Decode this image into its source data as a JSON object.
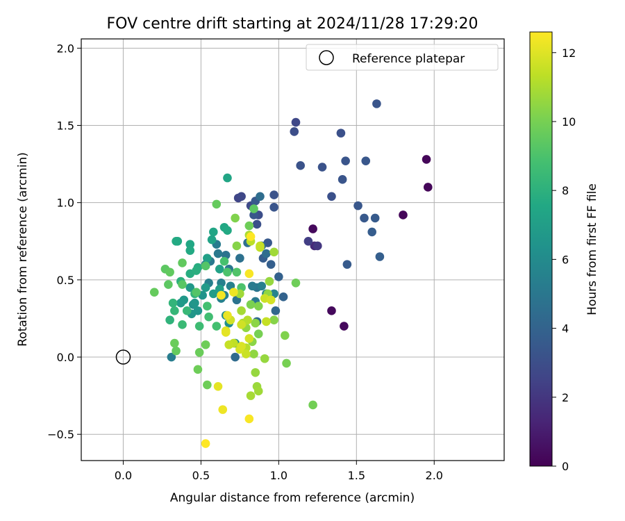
{
  "chart_data": {
    "type": "scatter",
    "title": "FOV centre drift starting at 2024/11/28 17:29:20",
    "xlabel": "Angular distance from reference (arcmin)",
    "ylabel": "Rotation from reference (arcmin)",
    "xlim": [
      -0.27,
      2.45
    ],
    "ylim": [
      -0.67,
      2.06
    ],
    "xticks": [
      0.0,
      0.5,
      1.0,
      1.5,
      2.0
    ],
    "xtick_labels": [
      "0.0",
      "0.5",
      "1.0",
      "1.5",
      "2.0"
    ],
    "yticks": [
      -0.5,
      0.0,
      0.5,
      1.0,
      1.5,
      2.0
    ],
    "ytick_labels": [
      "−0.5",
      "0.0",
      "0.5",
      "1.0",
      "1.5",
      "2.0"
    ],
    "grid": true,
    "legend": {
      "position": "top-right",
      "entries": [
        "Reference platepar"
      ]
    },
    "reference_point": {
      "x": 0.0,
      "y": 0.0,
      "label": "Reference platepar"
    },
    "colorbar": {
      "label": "Hours from first FF file",
      "colormap": "viridis",
      "range": [
        0,
        12.6
      ],
      "ticks": [
        0,
        2,
        4,
        6,
        8,
        10,
        12
      ],
      "tick_labels": [
        "0",
        "2",
        "4",
        "6",
        "8",
        "10",
        "12"
      ]
    },
    "points_note": "each point is [x_arcmin, y_arcmin, hours]",
    "points": [
      [
        1.95,
        1.28,
        0.2
      ],
      [
        1.96,
        1.1,
        0.2
      ],
      [
        1.8,
        0.92,
        0.2
      ],
      [
        1.22,
        0.83,
        0.3
      ],
      [
        1.34,
        0.3,
        0.3
      ],
      [
        1.42,
        0.2,
        0.3
      ],
      [
        1.23,
        0.72,
        1.5
      ],
      [
        1.25,
        0.72,
        2.0
      ],
      [
        1.19,
        0.75,
        2.3
      ],
      [
        1.11,
        1.52,
        2.7
      ],
      [
        1.63,
        1.64,
        3.3
      ],
      [
        1.1,
        1.46,
        3.0
      ],
      [
        1.14,
        1.24,
        3.2
      ],
      [
        1.4,
        1.45,
        3.1
      ],
      [
        1.28,
        1.23,
        3.2
      ],
      [
        1.43,
        1.27,
        3.3
      ],
      [
        1.56,
        1.27,
        3.4
      ],
      [
        1.34,
        1.04,
        3.1
      ],
      [
        1.41,
        1.15,
        3.3
      ],
      [
        1.51,
        0.98,
        3.4
      ],
      [
        1.55,
        0.9,
        3.5
      ],
      [
        1.62,
        0.9,
        3.6
      ],
      [
        1.6,
        0.81,
        3.7
      ],
      [
        1.65,
        0.65,
        3.8
      ],
      [
        1.44,
        0.6,
        3.6
      ],
      [
        0.74,
        1.03,
        2.6
      ],
      [
        0.76,
        1.04,
        2.7
      ],
      [
        0.82,
        0.98,
        2.8
      ],
      [
        0.87,
        0.92,
        3.0
      ],
      [
        0.86,
        0.86,
        3.1
      ],
      [
        0.97,
        1.05,
        3.2
      ],
      [
        0.97,
        0.97,
        3.3
      ],
      [
        0.84,
        0.92,
        3.4
      ],
      [
        0.93,
        0.74,
        3.5
      ],
      [
        0.9,
        0.64,
        3.7
      ],
      [
        0.95,
        0.6,
        3.8
      ],
      [
        1.0,
        0.52,
        3.9
      ],
      [
        1.03,
        0.39,
        4.0
      ],
      [
        0.98,
        0.3,
        4.2
      ],
      [
        0.86,
        0.23,
        4.3
      ],
      [
        0.72,
        0.0,
        4.4
      ],
      [
        0.31,
        0.0,
        5.3
      ],
      [
        0.85,
        1.01,
        3.5
      ],
      [
        0.88,
        1.04,
        4.5
      ],
      [
        0.89,
        0.72,
        4.3
      ],
      [
        0.92,
        0.67,
        4.5
      ],
      [
        0.8,
        0.74,
        4.6
      ],
      [
        0.75,
        0.64,
        4.7
      ],
      [
        0.73,
        0.37,
        4.8
      ],
      [
        0.66,
        0.66,
        4.8
      ],
      [
        0.68,
        0.57,
        5.0
      ],
      [
        0.61,
        0.67,
        5.1
      ],
      [
        0.56,
        0.62,
        5.1
      ],
      [
        0.6,
        0.73,
        5.2
      ],
      [
        0.53,
        0.6,
        5.3
      ],
      [
        0.55,
        0.48,
        5.4
      ],
      [
        0.63,
        0.48,
        5.4
      ],
      [
        0.69,
        0.46,
        5.5
      ],
      [
        0.63,
        0.38,
        5.5
      ],
      [
        0.65,
        0.4,
        5.6
      ],
      [
        0.86,
        0.45,
        4.9
      ],
      [
        0.85,
        0.36,
        5.1
      ],
      [
        0.83,
        0.46,
        5.2
      ],
      [
        0.89,
        0.46,
        5.4
      ],
      [
        0.92,
        0.41,
        5.6
      ],
      [
        0.97,
        0.41,
        5.6
      ],
      [
        0.77,
        0.22,
        5.8
      ],
      [
        0.66,
        0.27,
        6.0
      ],
      [
        0.68,
        0.22,
        6.2
      ],
      [
        0.72,
        0.09,
        6.1
      ],
      [
        0.45,
        0.34,
        6.3
      ],
      [
        0.51,
        0.4,
        6.4
      ],
      [
        0.48,
        0.3,
        6.5
      ],
      [
        0.44,
        0.28,
        6.6
      ],
      [
        0.46,
        0.35,
        6.6
      ],
      [
        0.39,
        0.37,
        6.7
      ],
      [
        0.37,
        0.35,
        6.8
      ],
      [
        0.43,
        0.45,
        6.7
      ],
      [
        0.53,
        0.45,
        6.8
      ],
      [
        0.58,
        0.41,
        6.9
      ],
      [
        0.62,
        0.44,
        7.0
      ],
      [
        0.54,
        0.64,
        7.1
      ],
      [
        0.62,
        0.57,
        7.2
      ],
      [
        0.57,
        0.76,
        7.3
      ],
      [
        0.58,
        0.81,
        7.4
      ],
      [
        0.65,
        0.84,
        7.5
      ],
      [
        0.67,
        0.82,
        7.6
      ],
      [
        0.67,
        1.16,
        7.4
      ],
      [
        0.43,
        0.73,
        7.5
      ],
      [
        0.43,
        0.69,
        7.6
      ],
      [
        0.34,
        0.75,
        7.7
      ],
      [
        0.35,
        0.75,
        7.6
      ],
      [
        0.48,
        0.58,
        7.8
      ],
      [
        0.43,
        0.54,
        7.8
      ],
      [
        0.47,
        0.56,
        7.9
      ],
      [
        0.37,
        0.49,
        8.0
      ],
      [
        0.46,
        0.41,
        8.1
      ],
      [
        0.3,
        0.24,
        8.1
      ],
      [
        0.32,
        0.35,
        8.2
      ],
      [
        0.33,
        0.3,
        8.3
      ],
      [
        0.41,
        0.3,
        8.4
      ],
      [
        0.38,
        0.21,
        8.5
      ],
      [
        0.49,
        0.2,
        8.6
      ],
      [
        0.55,
        0.26,
        8.7
      ],
      [
        0.6,
        0.2,
        8.8
      ],
      [
        0.54,
        0.33,
        8.8
      ],
      [
        0.65,
        0.62,
        8.9
      ],
      [
        0.67,
        0.55,
        9.0
      ],
      [
        0.76,
        0.45,
        9.0
      ],
      [
        0.73,
        0.55,
        9.1
      ],
      [
        0.53,
        0.59,
        9.2
      ],
      [
        0.47,
        0.42,
        9.2
      ],
      [
        0.38,
        0.47,
        9.3
      ],
      [
        0.29,
        0.47,
        9.4
      ],
      [
        0.27,
        0.57,
        9.4
      ],
      [
        0.3,
        0.55,
        9.5
      ],
      [
        0.38,
        0.61,
        9.5
      ],
      [
        0.2,
        0.42,
        9.6
      ],
      [
        0.34,
        0.04,
        9.6
      ],
      [
        0.33,
        0.09,
        9.7
      ],
      [
        0.49,
        0.03,
        9.7
      ],
      [
        0.53,
        0.08,
        9.8
      ],
      [
        0.48,
        -0.08,
        9.8
      ],
      [
        0.54,
        -0.18,
        9.8
      ],
      [
        0.6,
        0.99,
        9.6
      ],
      [
        0.84,
        0.96,
        9.4
      ],
      [
        0.81,
        0.85,
        9.8
      ],
      [
        0.72,
        0.9,
        10.2
      ],
      [
        0.73,
        0.72,
        10.3
      ],
      [
        0.87,
        0.15,
        10.0
      ],
      [
        0.82,
        0.34,
        10.1
      ],
      [
        0.87,
        0.33,
        10.2
      ],
      [
        0.85,
        0.22,
        10.4
      ],
      [
        0.79,
        0.19,
        10.5
      ],
      [
        0.83,
        0.1,
        10.4
      ],
      [
        0.84,
        0.02,
        10.5
      ],
      [
        0.91,
        -0.01,
        10.6
      ],
      [
        0.85,
        -0.1,
        10.6
      ],
      [
        0.86,
        -0.19,
        10.7
      ],
      [
        0.87,
        -0.22,
        10.8
      ],
      [
        0.82,
        -0.25,
        10.9
      ],
      [
        1.11,
        0.48,
        9.8
      ],
      [
        1.04,
        0.14,
        10.2
      ],
      [
        1.05,
        -0.04,
        10.0
      ],
      [
        1.22,
        -0.31,
        9.9
      ],
      [
        0.97,
        0.24,
        10.3
      ],
      [
        0.93,
        0.41,
        10.5
      ],
      [
        0.94,
        0.49,
        10.6
      ],
      [
        0.97,
        0.68,
        10.8
      ],
      [
        0.81,
        0.79,
        11.0
      ],
      [
        0.82,
        0.75,
        11.3
      ],
      [
        0.88,
        0.71,
        11.4
      ],
      [
        0.88,
        0.72,
        11.5
      ],
      [
        0.76,
        0.3,
        10.9
      ],
      [
        0.75,
        0.41,
        10.8
      ],
      [
        0.77,
        0.22,
        11.1
      ],
      [
        0.79,
        0.06,
        11.2
      ],
      [
        0.79,
        0.02,
        11.6
      ],
      [
        0.8,
        0.24,
        11.2
      ],
      [
        0.69,
        0.24,
        11.3
      ],
      [
        0.71,
        0.09,
        11.4
      ],
      [
        0.68,
        0.08,
        11.5
      ],
      [
        0.69,
        0.24,
        11.7
      ],
      [
        0.75,
        0.05,
        11.8
      ],
      [
        0.76,
        0.07,
        11.9
      ],
      [
        0.76,
        0.21,
        11.7
      ],
      [
        0.81,
        0.12,
        11.8
      ],
      [
        0.91,
        0.38,
        11.6
      ],
      [
        0.95,
        0.37,
        11.8
      ],
      [
        0.92,
        0.23,
        11.5
      ],
      [
        0.66,
        0.17,
        12.0
      ],
      [
        0.66,
        0.16,
        12.1
      ],
      [
        0.67,
        0.27,
        12.2
      ],
      [
        0.71,
        0.42,
        12.3
      ],
      [
        0.63,
        0.4,
        12.4
      ],
      [
        0.61,
        -0.19,
        12.1
      ],
      [
        0.64,
        -0.34,
        12.3
      ],
      [
        0.81,
        -0.4,
        12.5
      ],
      [
        0.53,
        -0.56,
        12.6
      ],
      [
        0.81,
        0.54,
        12.5
      ],
      [
        0.82,
        0.78,
        12.6
      ]
    ]
  }
}
